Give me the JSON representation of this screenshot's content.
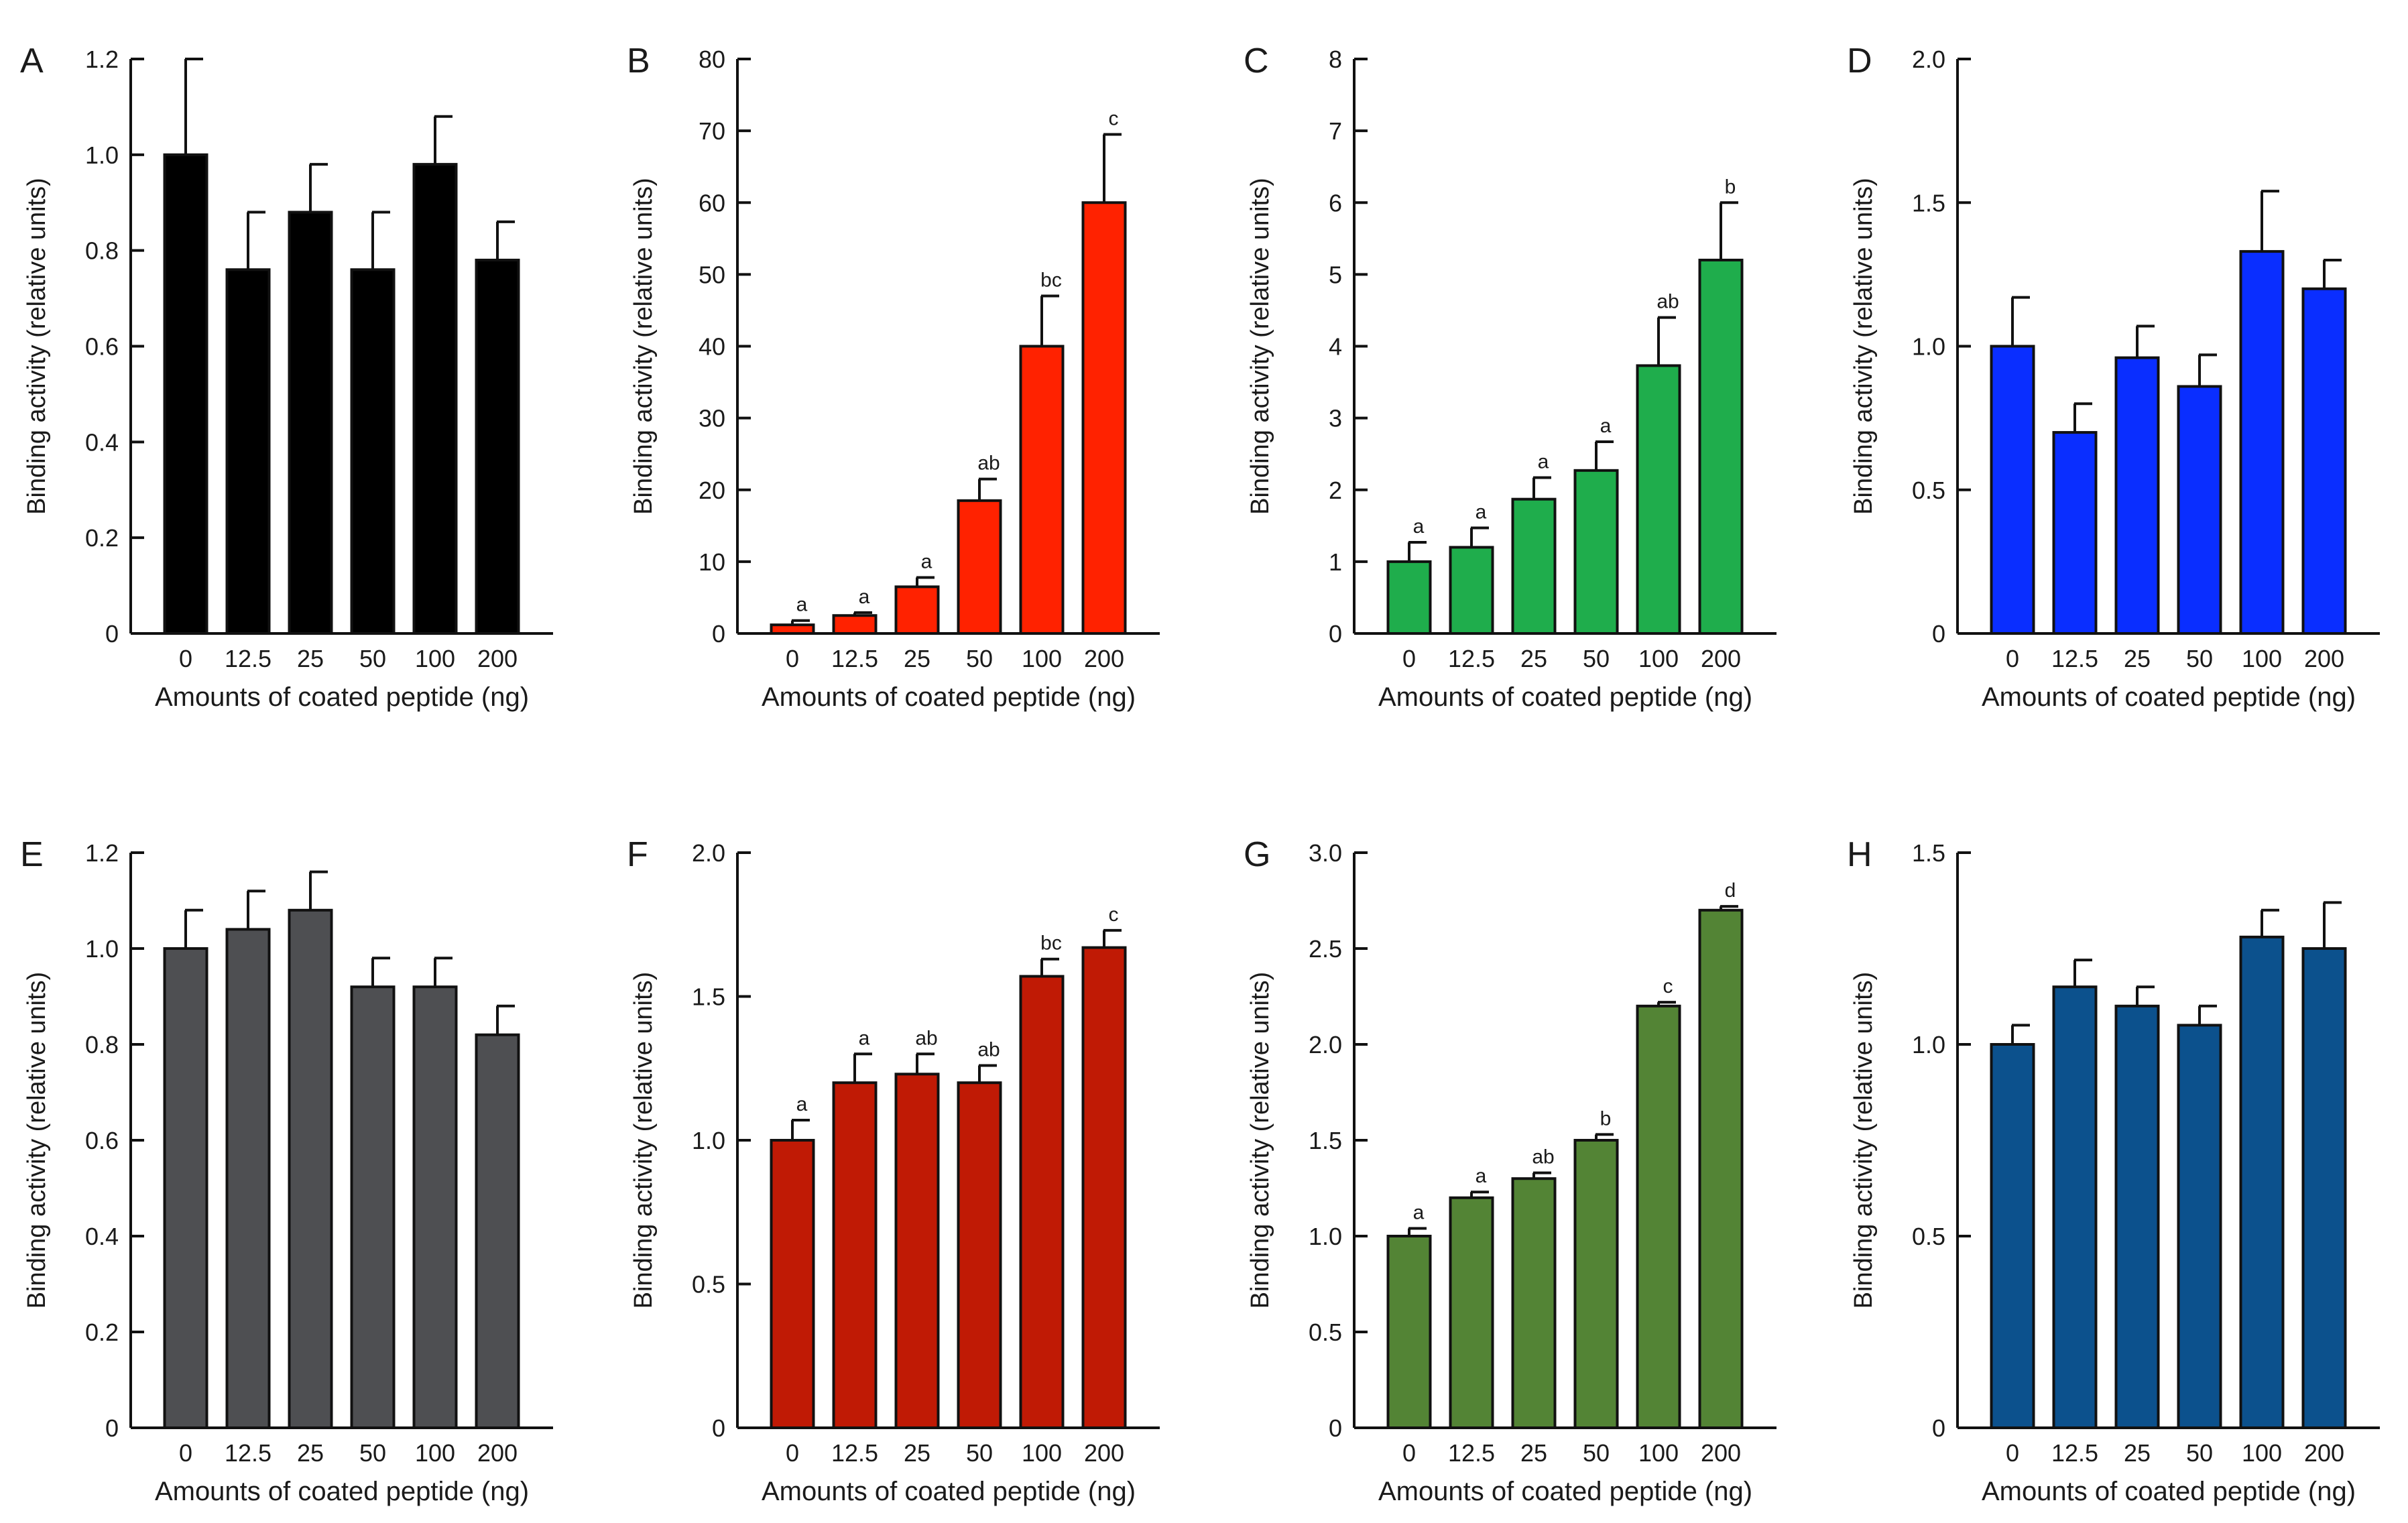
{
  "chart_data": [
    {
      "panel": "A",
      "type": "bar",
      "color": "#000000",
      "categories": [
        "0",
        "12.5",
        "25",
        "50",
        "100",
        "200"
      ],
      "values": [
        1.0,
        0.76,
        0.88,
        0.76,
        0.98,
        0.78
      ],
      "errors": [
        0.2,
        0.12,
        0.1,
        0.12,
        0.1,
        0.08
      ],
      "letters": [
        "",
        "",
        "",
        "",
        "",
        ""
      ],
      "ylim": [
        0,
        1.2
      ],
      "yticks": [
        "0",
        "0.2",
        "0.4",
        "0.6",
        "0.8",
        "1.0",
        "1.2"
      ],
      "xlabel": "Amounts of coated peptide (ng)",
      "ylabel": "Binding activity (relative units)"
    },
    {
      "panel": "B",
      "type": "bar",
      "color": "#ff2200",
      "categories": [
        "0",
        "12.5",
        "25",
        "50",
        "100",
        "200"
      ],
      "values": [
        1.2,
        2.5,
        6.5,
        18.5,
        40,
        60
      ],
      "errors": [
        0.6,
        0.4,
        1.3,
        3,
        7,
        9.5
      ],
      "letters": [
        "a",
        "a",
        "a",
        "ab",
        "bc",
        "c"
      ],
      "ylim": [
        0,
        80
      ],
      "yticks": [
        "0",
        "10",
        "20",
        "30",
        "40",
        "50",
        "60",
        "70",
        "80"
      ],
      "xlabel": "Amounts of coated peptide (ng)",
      "ylabel": "Binding activity (relative units)"
    },
    {
      "panel": "C",
      "type": "bar",
      "color": "#1fad4c",
      "categories": [
        "0",
        "12.5",
        "25",
        "50",
        "100",
        "200"
      ],
      "values": [
        1.0,
        1.2,
        1.87,
        2.27,
        3.73,
        5.2
      ],
      "errors": [
        0.27,
        0.27,
        0.3,
        0.4,
        0.67,
        0.8
      ],
      "letters": [
        "a",
        "a",
        "a",
        "a",
        "ab",
        "b"
      ],
      "ylim": [
        0,
        8
      ],
      "yticks": [
        "0",
        "1",
        "2",
        "3",
        "4",
        "5",
        "6",
        "7",
        "8"
      ],
      "xlabel": "Amounts of coated peptide (ng)",
      "ylabel": "Binding activity (relative units)"
    },
    {
      "panel": "D",
      "type": "bar",
      "color": "#0a2eff",
      "categories": [
        "0",
        "12.5",
        "25",
        "50",
        "100",
        "200"
      ],
      "values": [
        1.0,
        0.7,
        0.96,
        0.86,
        1.33,
        1.2
      ],
      "errors": [
        0.17,
        0.1,
        0.11,
        0.11,
        0.21,
        0.1
      ],
      "letters": [
        "",
        "",
        "",
        "",
        "",
        ""
      ],
      "ylim": [
        0,
        2.0
      ],
      "yticks": [
        "0",
        "0.5",
        "1.0",
        "1.5",
        "2.0"
      ],
      "xlabel": "Amounts of coated peptide (ng)",
      "ylabel": "Binding activity (relative units)"
    },
    {
      "panel": "E",
      "type": "bar",
      "color": "#4e4f52",
      "categories": [
        "0",
        "12.5",
        "25",
        "50",
        "100",
        "200"
      ],
      "values": [
        1.0,
        1.04,
        1.08,
        0.92,
        0.92,
        0.82
      ],
      "errors": [
        0.08,
        0.08,
        0.08,
        0.06,
        0.06,
        0.06
      ],
      "letters": [
        "",
        "",
        "",
        "",
        "",
        ""
      ],
      "ylim": [
        0,
        1.2
      ],
      "yticks": [
        "0",
        "0.2",
        "0.4",
        "0.6",
        "0.8",
        "1.0",
        "1.2"
      ],
      "xlabel": "Amounts of coated peptide (ng)",
      "ylabel": "Binding activity (relative units)"
    },
    {
      "panel": "F",
      "type": "bar",
      "color": "#c01a05",
      "categories": [
        "0",
        "12.5",
        "25",
        "50",
        "100",
        "200"
      ],
      "values": [
        1.0,
        1.2,
        1.23,
        1.2,
        1.57,
        1.67
      ],
      "errors": [
        0.07,
        0.1,
        0.07,
        0.06,
        0.06,
        0.06
      ],
      "letters": [
        "a",
        "a",
        "ab",
        "ab",
        "bc",
        "c"
      ],
      "ylim": [
        0,
        2.0
      ],
      "yticks": [
        "0",
        "0.5",
        "1.0",
        "1.5",
        "2.0"
      ],
      "xlabel": "Amounts of coated peptide (ng)",
      "ylabel": "Binding activity (relative units)"
    },
    {
      "panel": "G",
      "type": "bar",
      "color": "#538435",
      "categories": [
        "0",
        "12.5",
        "25",
        "50",
        "100",
        "200"
      ],
      "values": [
        1.0,
        1.2,
        1.3,
        1.5,
        2.2,
        2.7
      ],
      "errors": [
        0.04,
        0.03,
        0.03,
        0.03,
        0.02,
        0.02
      ],
      "letters": [
        "a",
        "a",
        "ab",
        "b",
        "c",
        "d"
      ],
      "ylim": [
        0,
        3.0
      ],
      "yticks": [
        "0",
        "0.5",
        "1.0",
        "1.5",
        "2.0",
        "2.5",
        "3.0"
      ],
      "xlabel": "Amounts of coated peptide (ng)",
      "ylabel": "Binding activity (relative units)"
    },
    {
      "panel": "H",
      "type": "bar",
      "color": "#0c518d",
      "categories": [
        "0",
        "12.5",
        "25",
        "50",
        "100",
        "200"
      ],
      "values": [
        1.0,
        1.15,
        1.1,
        1.05,
        1.28,
        1.25
      ],
      "errors": [
        0.05,
        0.07,
        0.05,
        0.05,
        0.07,
        0.12
      ],
      "letters": [
        "",
        "",
        "",
        "",
        "",
        ""
      ],
      "ylim": [
        0,
        1.5
      ],
      "yticks": [
        "0",
        "0.5",
        "1.0",
        "1.5"
      ],
      "xlabel": "Amounts of coated peptide (ng)",
      "ylabel": "Binding activity (relative units)"
    }
  ]
}
